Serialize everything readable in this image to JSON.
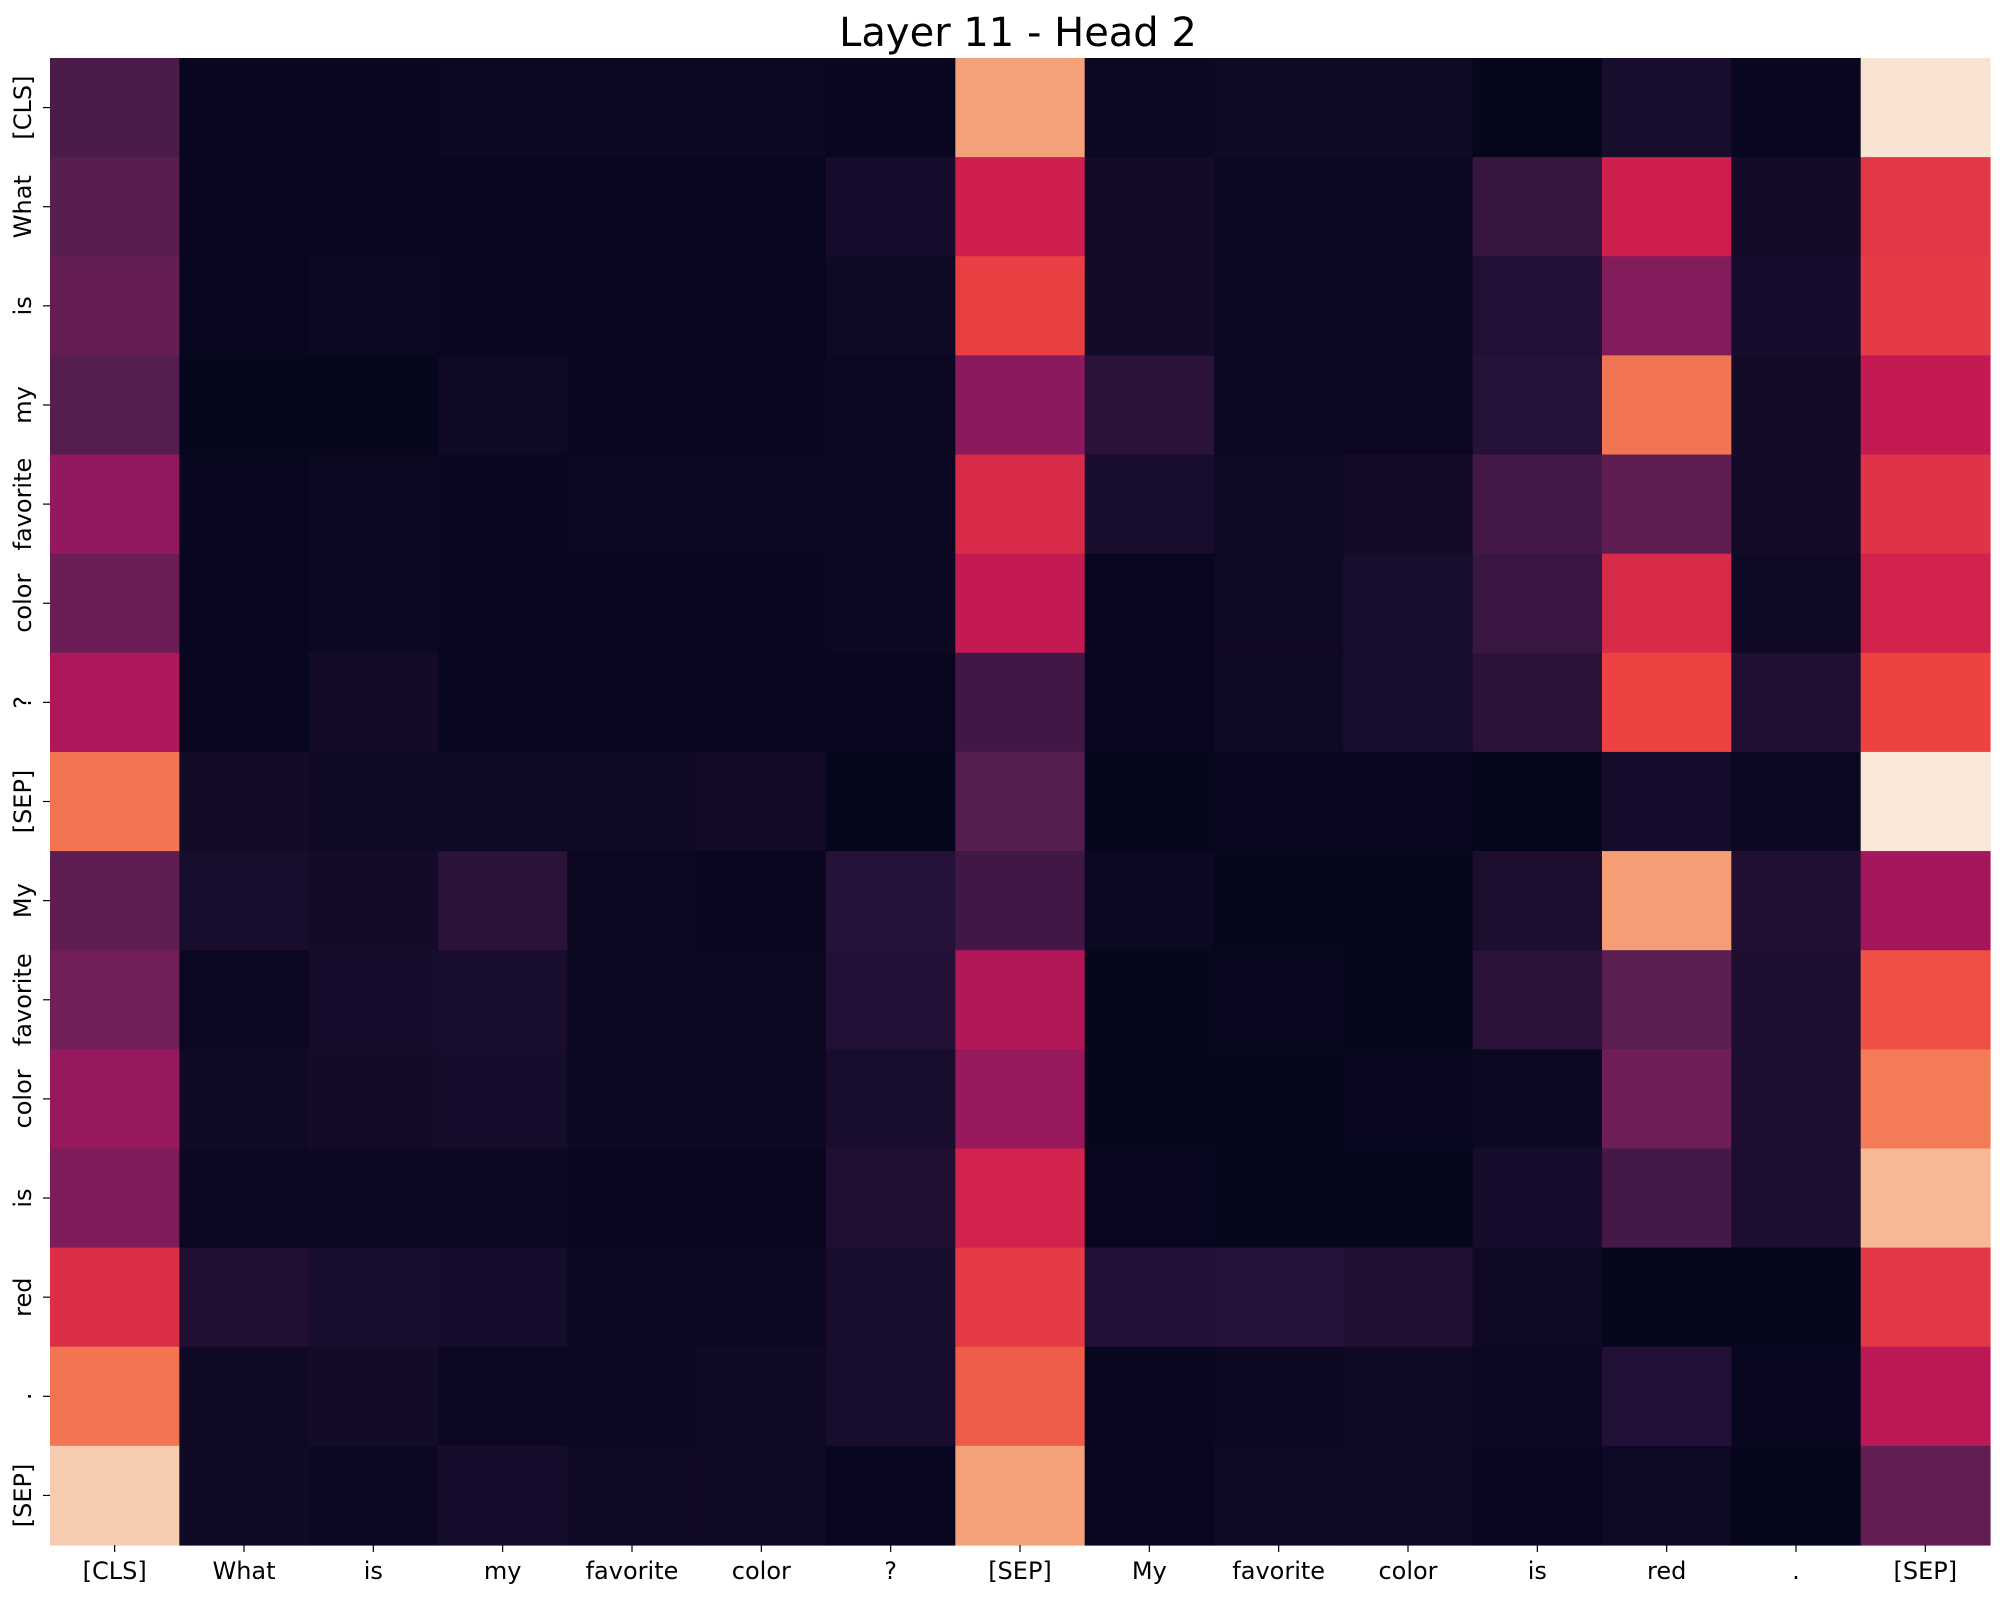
{
  "chart_data": {
    "type": "heatmap",
    "title": "Layer 11 - Head 2",
    "xlabel": "",
    "ylabel": "",
    "colormap": "rocket",
    "colorbar": false,
    "grid": false,
    "x_tokens": [
      "[CLS]",
      "What",
      "is",
      "my",
      "favorite",
      "color",
      "?",
      "[SEP]",
      "My",
      "favorite",
      "color",
      "is",
      "red",
      ".",
      "[SEP]"
    ],
    "y_tokens": [
      "[CLS]",
      "What",
      "is",
      "my",
      "favorite",
      "color",
      "?",
      "[SEP]",
      "My",
      "favorite",
      "color",
      "is",
      "red",
      ".",
      "[SEP]"
    ],
    "value_range": [
      0,
      1
    ],
    "values": [
      [
        0.22,
        0.02,
        0.02,
        0.03,
        0.03,
        0.03,
        0.02,
        0.82,
        0.03,
        0.04,
        0.04,
        0.01,
        0.07,
        0.02,
        0.98
      ],
      [
        0.26,
        0.02,
        0.02,
        0.02,
        0.02,
        0.02,
        0.06,
        0.56,
        0.05,
        0.03,
        0.03,
        0.16,
        0.56,
        0.05,
        0.62
      ],
      [
        0.3,
        0.02,
        0.03,
        0.02,
        0.02,
        0.02,
        0.04,
        0.64,
        0.05,
        0.03,
        0.03,
        0.1,
        0.38,
        0.06,
        0.63
      ],
      [
        0.25,
        0.01,
        0.01,
        0.04,
        0.02,
        0.02,
        0.03,
        0.4,
        0.12,
        0.03,
        0.03,
        0.11,
        0.73,
        0.05,
        0.53
      ],
      [
        0.42,
        0.02,
        0.03,
        0.02,
        0.03,
        0.03,
        0.03,
        0.59,
        0.07,
        0.04,
        0.05,
        0.2,
        0.28,
        0.05,
        0.61
      ],
      [
        0.32,
        0.02,
        0.03,
        0.02,
        0.02,
        0.02,
        0.03,
        0.53,
        0.02,
        0.04,
        0.07,
        0.17,
        0.59,
        0.04,
        0.57
      ],
      [
        0.48,
        0.02,
        0.05,
        0.02,
        0.02,
        0.02,
        0.02,
        0.19,
        0.02,
        0.04,
        0.07,
        0.12,
        0.65,
        0.09,
        0.65
      ],
      [
        0.73,
        0.05,
        0.04,
        0.04,
        0.04,
        0.05,
        0.01,
        0.25,
        0.01,
        0.02,
        0.02,
        0.01,
        0.06,
        0.03,
        0.99
      ],
      [
        0.28,
        0.07,
        0.05,
        0.12,
        0.03,
        0.02,
        0.11,
        0.19,
        0.03,
        0.01,
        0.01,
        0.08,
        0.81,
        0.09,
        0.46
      ],
      [
        0.34,
        0.03,
        0.06,
        0.07,
        0.03,
        0.03,
        0.1,
        0.49,
        0.01,
        0.02,
        0.01,
        0.12,
        0.27,
        0.08,
        0.67
      ],
      [
        0.43,
        0.04,
        0.05,
        0.06,
        0.03,
        0.03,
        0.07,
        0.43,
        0.01,
        0.01,
        0.02,
        0.03,
        0.33,
        0.08,
        0.74
      ],
      [
        0.37,
        0.03,
        0.03,
        0.03,
        0.02,
        0.02,
        0.09,
        0.57,
        0.02,
        0.01,
        0.01,
        0.06,
        0.2,
        0.08,
        0.87
      ],
      [
        0.6,
        0.09,
        0.07,
        0.06,
        0.03,
        0.03,
        0.07,
        0.63,
        0.1,
        0.11,
        0.09,
        0.04,
        0.01,
        0.01,
        0.62
      ],
      [
        0.73,
        0.04,
        0.05,
        0.03,
        0.03,
        0.04,
        0.07,
        0.69,
        0.02,
        0.03,
        0.04,
        0.03,
        0.1,
        0.02,
        0.51
      ],
      [
        0.92,
        0.04,
        0.03,
        0.06,
        0.04,
        0.04,
        0.02,
        0.82,
        0.02,
        0.04,
        0.04,
        0.02,
        0.04,
        0.01,
        0.29
      ]
    ]
  }
}
